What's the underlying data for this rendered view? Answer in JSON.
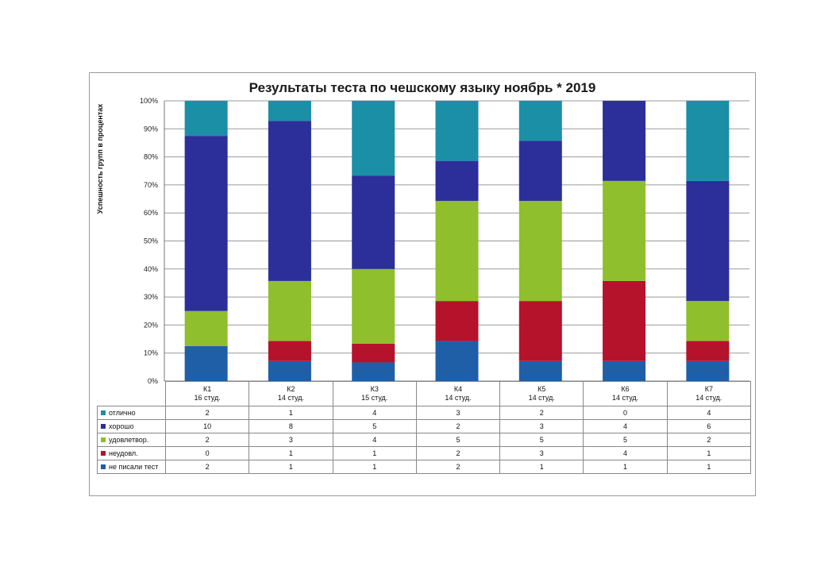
{
  "chart_data": {
    "type": "bar",
    "stacked": true,
    "normalized": true,
    "title": "Результаты теста по чешскому языку  ноябрь * 2019",
    "ylabel": "Успешность групп в процентах",
    "xlabel": "",
    "yticks": [
      "0%",
      "10%",
      "20%",
      "30%",
      "40%",
      "50%",
      "60%",
      "70%",
      "80%",
      "90%",
      "100%"
    ],
    "ylim": [
      0,
      100
    ],
    "grid": true,
    "categories": [
      "К1",
      "К2",
      "К3",
      "К4",
      "К5",
      "К6",
      "К7"
    ],
    "category_subtitles": [
      "16 студ.",
      "14 студ.",
      "15 студ.",
      "14 студ.",
      "14 студ.",
      "14 студ.",
      "14 студ."
    ],
    "series": [
      {
        "name": "не писали тест",
        "color": "#1f5fa8",
        "values": [
          2,
          1,
          1,
          2,
          1,
          1,
          1
        ]
      },
      {
        "name": "неудовл.",
        "color": "#b5122b",
        "values": [
          0,
          1,
          1,
          2,
          3,
          4,
          1
        ]
      },
      {
        "name": "удовлетвор.",
        "color": "#8fbf2c",
        "values": [
          2,
          3,
          4,
          5,
          5,
          5,
          2
        ]
      },
      {
        "name": "хорошо",
        "color": "#2c2f9a",
        "values": [
          10,
          8,
          5,
          2,
          3,
          4,
          6
        ]
      },
      {
        "name": "отлично",
        "color": "#1b8fa6",
        "values": [
          2,
          1,
          4,
          3,
          2,
          0,
          4
        ]
      }
    ],
    "table_row_order": [
      "отлично",
      "хорошо",
      "удовлетвор.",
      "неудовл.",
      "не писали тест"
    ],
    "legend_placement": "data-table-below"
  }
}
